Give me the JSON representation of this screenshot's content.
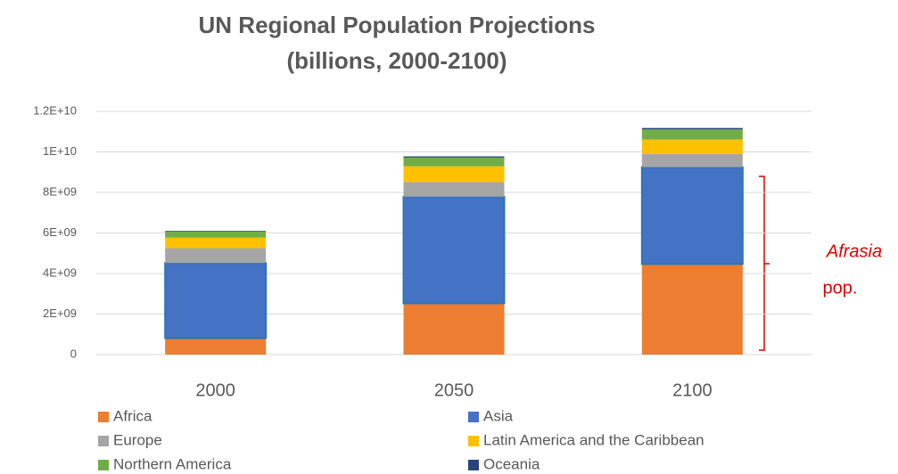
{
  "chart_data": {
    "type": "stacked_bar",
    "title": "UN Regional Population Projections",
    "subtitle": "(billions, 2000-2100)",
    "categories": [
      "2000",
      "2050",
      "2100"
    ],
    "series": [
      {
        "name": "Africa",
        "color": "#ed7d31",
        "values": [
          810000000,
          2530000000,
          4470000000
        ]
      },
      {
        "name": "Asia",
        "color": "#4472c4",
        "values": [
          3710000000,
          5260000000,
          4780000000
        ]
      },
      {
        "name": "Europe",
        "color": "#a5a5a5",
        "values": [
          730000000,
          720000000,
          650000000
        ]
      },
      {
        "name": "Latin America and the Caribbean",
        "color": "#ffc000",
        "values": [
          520000000,
          780000000,
          710000000
        ]
      },
      {
        "name": "Northern America",
        "color": "#70ad47",
        "values": [
          310000000,
          430000000,
          500000000
        ]
      },
      {
        "name": "Oceania",
        "color": "#264478",
        "values": [
          30000000,
          60000000,
          70000000
        ]
      }
    ],
    "ylim": [
      0,
      12000000000
    ],
    "yticks": [
      {
        "value": 0,
        "label": "0"
      },
      {
        "value": 2000000000,
        "label": "2E+09"
      },
      {
        "value": 4000000000,
        "label": "4E+09"
      },
      {
        "value": 6000000000,
        "label": "6E+09"
      },
      {
        "value": 8000000000,
        "label": "8E+09"
      },
      {
        "value": 10000000000,
        "label": "1E+10"
      },
      {
        "value": 12000000000,
        "label": "1.2E+10"
      }
    ],
    "grid": true,
    "annotation": [
      "Afrasia",
      "pop."
    ]
  }
}
